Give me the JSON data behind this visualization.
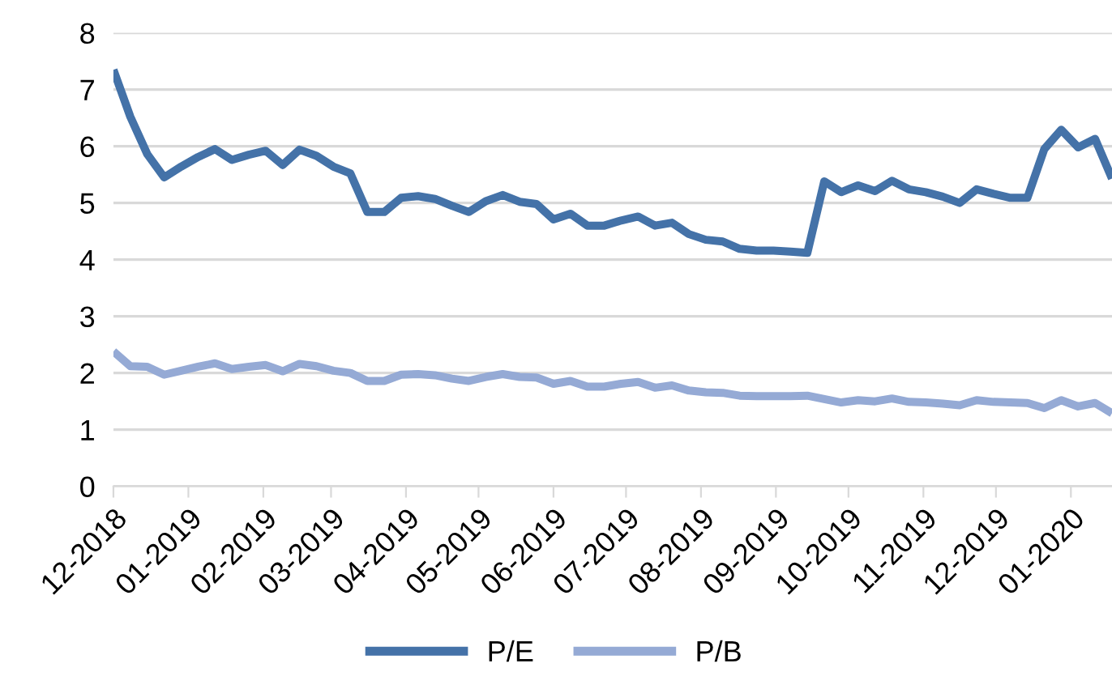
{
  "chart_data": {
    "type": "line",
    "x": [
      "2018-12-01",
      "2018-12-08",
      "2018-12-15",
      "2018-12-22",
      "2018-12-29",
      "2019-01-05",
      "2019-01-12",
      "2019-01-19",
      "2019-01-26",
      "2019-02-02",
      "2019-02-09",
      "2019-02-16",
      "2019-02-23",
      "2019-03-02",
      "2019-03-09",
      "2019-03-16",
      "2019-03-23",
      "2019-03-30",
      "2019-04-06",
      "2019-04-13",
      "2019-04-20",
      "2019-04-27",
      "2019-05-04",
      "2019-05-11",
      "2019-05-18",
      "2019-05-25",
      "2019-06-01",
      "2019-06-08",
      "2019-06-15",
      "2019-06-22",
      "2019-06-29",
      "2019-07-06",
      "2019-07-13",
      "2019-07-20",
      "2019-07-27",
      "2019-08-03",
      "2019-08-10",
      "2019-08-17",
      "2019-08-24",
      "2019-08-31",
      "2019-09-07",
      "2019-09-14",
      "2019-09-21",
      "2019-09-28",
      "2019-10-05",
      "2019-10-12",
      "2019-10-19",
      "2019-10-26",
      "2019-11-02",
      "2019-11-09",
      "2019-11-16",
      "2019-11-23",
      "2019-11-30",
      "2019-12-07",
      "2019-12-14",
      "2019-12-21",
      "2019-12-28",
      "2020-01-04",
      "2020-01-11",
      "2020-01-18"
    ],
    "series": [
      {
        "name": "P/E",
        "color": "#4472a8",
        "values": [
          7.35,
          6.52,
          5.86,
          5.45,
          5.64,
          5.81,
          5.95,
          5.76,
          5.85,
          5.92,
          5.67,
          5.94,
          5.83,
          5.64,
          5.52,
          4.84,
          4.84,
          5.09,
          5.12,
          5.07,
          4.95,
          4.84,
          5.03,
          5.14,
          5.02,
          4.98,
          4.71,
          4.81,
          4.6,
          4.6,
          4.69,
          4.76,
          4.6,
          4.65,
          4.45,
          4.35,
          4.32,
          4.19,
          4.16,
          4.16,
          4.14,
          4.12,
          5.38,
          5.19,
          5.31,
          5.21,
          5.39,
          5.24,
          5.19,
          5.11,
          5.0,
          5.24,
          5.16,
          5.09,
          5.09,
          5.95,
          6.29,
          5.98,
          6.13,
          5.43
        ]
      },
      {
        "name": "P/B",
        "color": "#95aad5",
        "values": [
          2.38,
          2.12,
          2.11,
          1.97,
          2.04,
          2.11,
          2.17,
          2.07,
          2.11,
          2.14,
          2.03,
          2.16,
          2.12,
          2.04,
          2.0,
          1.86,
          1.86,
          1.97,
          1.98,
          1.96,
          1.9,
          1.86,
          1.93,
          1.98,
          1.93,
          1.92,
          1.81,
          1.86,
          1.76,
          1.76,
          1.81,
          1.84,
          1.74,
          1.78,
          1.69,
          1.66,
          1.65,
          1.6,
          1.59,
          1.59,
          1.59,
          1.6,
          1.54,
          1.48,
          1.52,
          1.5,
          1.55,
          1.49,
          1.48,
          1.46,
          1.43,
          1.52,
          1.49,
          1.48,
          1.47,
          1.38,
          1.52,
          1.41,
          1.47,
          1.29
        ]
      }
    ],
    "xlim": [
      "2018-12-01",
      "2020-01-18"
    ],
    "xticks": [
      {
        "value": "2018-12-01",
        "label": "12-2018"
      },
      {
        "value": "2019-01-01",
        "label": "01-2019"
      },
      {
        "value": "2019-02-01",
        "label": "02-2019"
      },
      {
        "value": "2019-03-01",
        "label": "03-2019"
      },
      {
        "value": "2019-04-01",
        "label": "04-2019"
      },
      {
        "value": "2019-05-01",
        "label": "05-2019"
      },
      {
        "value": "2019-06-01",
        "label": "06-2019"
      },
      {
        "value": "2019-07-01",
        "label": "07-2019"
      },
      {
        "value": "2019-08-01",
        "label": "08-2019"
      },
      {
        "value": "2019-09-01",
        "label": "09-2019"
      },
      {
        "value": "2019-10-01",
        "label": "10-2019"
      },
      {
        "value": "2019-11-01",
        "label": "11-2019"
      },
      {
        "value": "2019-12-01",
        "label": "12-2019"
      },
      {
        "value": "2020-01-01",
        "label": "01-2020"
      }
    ],
    "ylim": [
      0,
      8
    ],
    "yticks": [
      0,
      1,
      2,
      3,
      4,
      5,
      6,
      7,
      8
    ],
    "grid": "y",
    "legend": "bottom",
    "marker": "none",
    "line_style": "solid"
  }
}
